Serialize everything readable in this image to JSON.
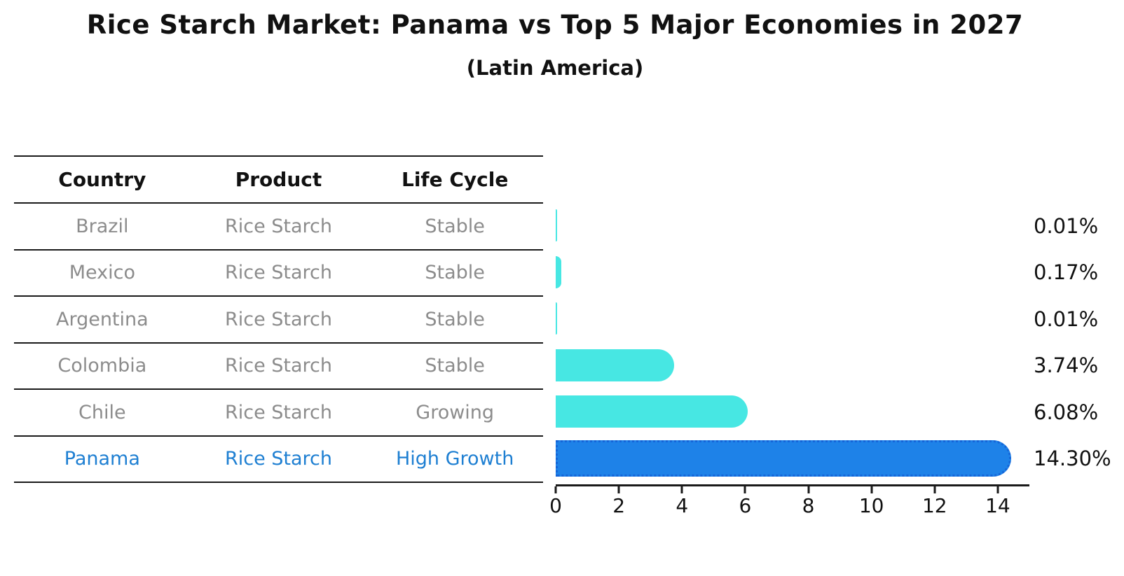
{
  "header": {
    "title": "Rice Starch Market: Panama vs Top 5 Major Economies in 2027",
    "subtitle": "(Latin America)"
  },
  "table": {
    "headers": [
      "Country",
      "Product",
      "Life Cycle"
    ],
    "rows": [
      {
        "country": "Brazil",
        "product": "Rice Starch",
        "life_cycle": "Stable",
        "highlight": false
      },
      {
        "country": "Mexico",
        "product": "Rice Starch",
        "life_cycle": "Stable",
        "highlight": false
      },
      {
        "country": "Argentina",
        "product": "Rice Starch",
        "life_cycle": "Stable",
        "highlight": false
      },
      {
        "country": "Colombia",
        "product": "Rice Starch",
        "life_cycle": "Stable",
        "highlight": false
      },
      {
        "country": "Chile",
        "product": "Rice Starch",
        "life_cycle": "Growing",
        "highlight": false
      },
      {
        "country": "Panama",
        "product": "Rice Starch",
        "life_cycle": "High Growth",
        "highlight": true
      }
    ]
  },
  "chart_data": {
    "type": "bar",
    "orientation": "horizontal",
    "title": "Rice Starch Market: Panama vs Top 5 Major Economies in 2027",
    "subtitle": "(Latin America)",
    "categories": [
      "Brazil",
      "Mexico",
      "Argentina",
      "Colombia",
      "Chile",
      "Panama"
    ],
    "values": [
      0.01,
      0.17,
      0.01,
      3.74,
      6.08,
      14.3
    ],
    "labels": [
      "0.01%",
      "0.17%",
      "0.01%",
      "3.74%",
      "6.08%",
      "14.30%"
    ],
    "highlight_index": 5,
    "xlim": [
      0,
      15
    ],
    "xticks": [
      0,
      2,
      4,
      6,
      8,
      10,
      12,
      14
    ],
    "xlabel": "",
    "ylabel": "",
    "grid": false,
    "legend": "none"
  },
  "colors": {
    "bar_default": "#47E7E3",
    "bar_highlight": "#1E82E8",
    "bar_highlight_border": "#1565D8",
    "highlight_text": "#1E7FD2",
    "muted_text": "#8C8C8C",
    "text": "#111111"
  }
}
